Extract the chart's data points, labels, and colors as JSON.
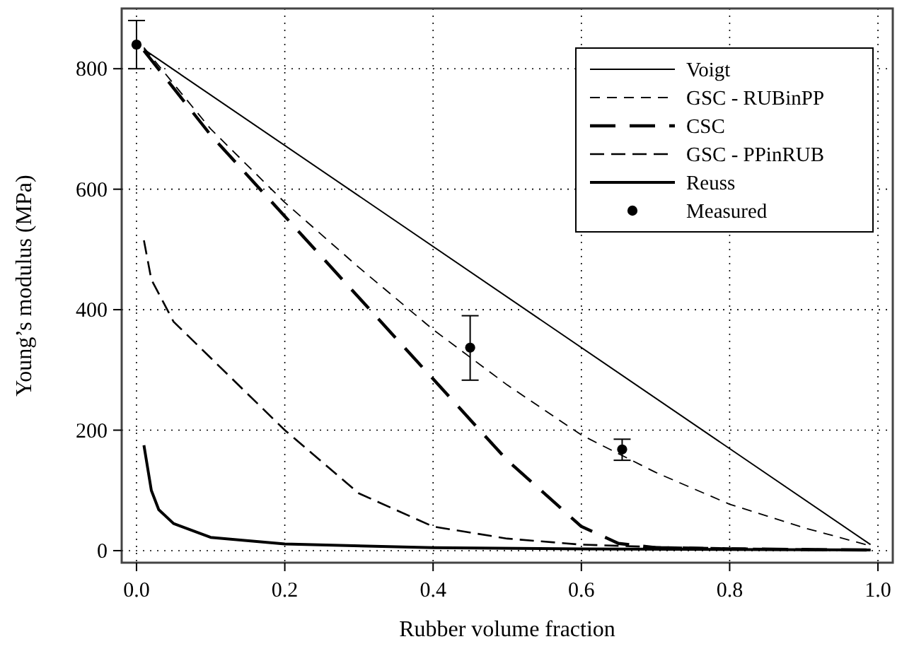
{
  "chart_data": {
    "type": "line",
    "xlabel": "Rubber volume fraction",
    "ylabel": "Young’s modulus (MPa)",
    "xlim": [
      -0.02,
      1.02
    ],
    "ylim": [
      -20,
      900
    ],
    "xticks": [
      {
        "value": 0,
        "label": "0.0"
      },
      0.2,
      0.4,
      0.6,
      0.8,
      {
        "value": 1,
        "label": "1.0"
      }
    ],
    "yticks": [
      0,
      200,
      400,
      600,
      800
    ],
    "grid": true,
    "legend": "top right",
    "series": [
      {
        "name": "Voigt",
        "color": "#000000",
        "line_style": "solid",
        "x": [
          0.01,
          0.99
        ],
        "values": [
          832,
          10
        ]
      },
      {
        "name": "GSC - RUBinPP",
        "color": "#000000",
        "line_style": "dashed",
        "x": [
          0.01,
          0.1,
          0.2,
          0.3,
          0.4,
          0.5,
          0.6,
          0.7,
          0.8,
          0.9,
          0.99
        ],
        "values": [
          835,
          700,
          578,
          470,
          367,
          275,
          192,
          130,
          77,
          38,
          8
        ]
      },
      {
        "name": "CSC",
        "color": "#000000",
        "line_style": "dashed",
        "x": [
          0.01,
          0.1,
          0.2,
          0.3,
          0.4,
          0.5,
          0.6,
          0.65,
          0.7,
          0.8,
          0.99
        ],
        "values": [
          830,
          690,
          555,
          420,
          285,
          150,
          40,
          12,
          5,
          3,
          1
        ]
      },
      {
        "name": "GSC - PPinRUB",
        "color": "#000000",
        "line_style": "dashed",
        "x": [
          0.01,
          0.02,
          0.05,
          0.1,
          0.2,
          0.3,
          0.4,
          0.5,
          0.6,
          0.7,
          0.8,
          0.99
        ],
        "values": [
          515,
          450,
          380,
          320,
          200,
          95,
          40,
          20,
          10,
          6,
          4,
          1
        ]
      },
      {
        "name": "Reuss",
        "color": "#000000",
        "line_style": "solid",
        "x": [
          0.01,
          0.02,
          0.03,
          0.05,
          0.1,
          0.2,
          0.4,
          0.6,
          0.99
        ],
        "values": [
          175,
          100,
          68,
          45,
          22,
          11,
          5,
          3,
          1
        ]
      },
      {
        "name": "Measured",
        "type": "scatter",
        "color": "#000000",
        "marker": "circle",
        "x": [
          0,
          0.45,
          0.655
        ],
        "values": [
          840,
          337,
          168
        ],
        "errors": [
          [
            800,
            880
          ],
          [
            283,
            390
          ],
          [
            150,
            185
          ]
        ]
      }
    ]
  }
}
